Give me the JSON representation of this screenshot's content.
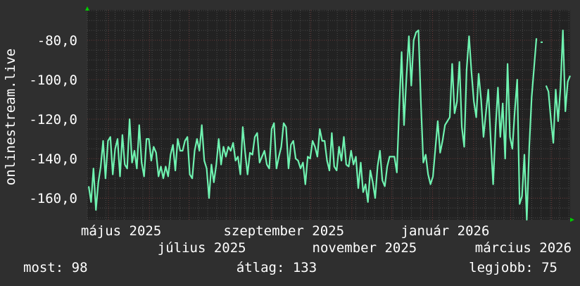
{
  "chart_data": {
    "type": "line",
    "ylabel": "onlinestream.live",
    "ylim": [
      -171,
      -64.6
    ],
    "xlim": [
      "2025-04-15",
      "2026-04-15"
    ],
    "grid": true,
    "yticks": [
      {
        "value": -80,
        "label": "-80,0"
      },
      {
        "value": -100,
        "label": "-100,0"
      },
      {
        "value": -120,
        "label": "-120,0"
      },
      {
        "value": -140,
        "label": "-140,0"
      },
      {
        "value": -160,
        "label": "-160,0"
      }
    ],
    "xticks": [
      {
        "date": "2025-05-01",
        "label": "május 2025"
      },
      {
        "date": "2025-07-01",
        "label": "július 2025"
      },
      {
        "date": "2025-09-01",
        "label": "szeptember 2025"
      },
      {
        "date": "2025-11-01",
        "label": "november 2025"
      },
      {
        "date": "2026-01-01",
        "label": "január 2026"
      },
      {
        "date": "2026-03-01",
        "label": "március 2026"
      }
    ],
    "line_color": "#6ff2b0",
    "values": [
      -154,
      -162,
      -145,
      -166,
      -152,
      -144,
      -131,
      -150,
      -131,
      -129,
      -148,
      -135,
      -130,
      -149,
      -128,
      -143,
      -145,
      -120,
      -142,
      -136,
      -145,
      -123,
      -142,
      -149,
      -130,
      -130,
      -141,
      -134,
      -137,
      -149,
      -144,
      -150,
      -144,
      -149,
      -138,
      -133,
      -146,
      -130,
      -136,
      -136,
      -131,
      -129,
      -148,
      -150,
      -136,
      -130,
      -136,
      -123,
      -141,
      -145,
      -160,
      -143,
      -152,
      -143,
      -130,
      -143,
      -134,
      -139,
      -134,
      -136,
      -132,
      -141,
      -139,
      -148,
      -124,
      -137,
      -148,
      -137,
      -138,
      -129,
      -127,
      -142,
      -139,
      -136,
      -143,
      -145,
      -125,
      -122,
      -145,
      -139,
      -134,
      -122,
      -124,
      -145,
      -133,
      -131,
      -140,
      -141,
      -145,
      -142,
      -153,
      -139,
      -140,
      -131,
      -134,
      -139,
      -125,
      -131,
      -131,
      -141,
      -146,
      -127,
      -144,
      -146,
      -134,
      -141,
      -129,
      -143,
      -144,
      -136,
      -143,
      -139,
      -155,
      -142,
      -157,
      -153,
      -162,
      -146,
      -152,
      -160,
      -144,
      -136,
      -151,
      -154,
      -144,
      -139,
      -139,
      -139,
      -147,
      -114,
      -86,
      -123,
      -99,
      -78,
      -103,
      -80,
      -76,
      -75,
      -112,
      -142,
      -138,
      -148,
      -153,
      -149,
      -135,
      -121,
      -137,
      -131,
      -123,
      -121,
      -119,
      -92,
      -117,
      -111,
      -91,
      -124,
      -134,
      -95,
      -78,
      -96,
      -111,
      -119,
      -97,
      -110,
      -129,
      -117,
      -105,
      -130,
      -153,
      -125,
      -104,
      -129,
      -112,
      -140,
      -92,
      -129,
      -135,
      -116,
      -100,
      -163,
      -159,
      -138,
      -171,
      -134,
      -109,
      -94,
      -79,
      null,
      -81,
      null,
      -103,
      -106,
      -120,
      -132,
      -105,
      -121,
      -104,
      -75,
      -116,
      -101,
      -98
    ]
  },
  "legend": {
    "current": "most: 98",
    "average": "átlag: 133",
    "best": "legjobb: 75"
  },
  "colors": {
    "background": "#2f2f2f",
    "plot": "#222222",
    "line": "#6ff2b0",
    "arrow": "#00cc00"
  }
}
